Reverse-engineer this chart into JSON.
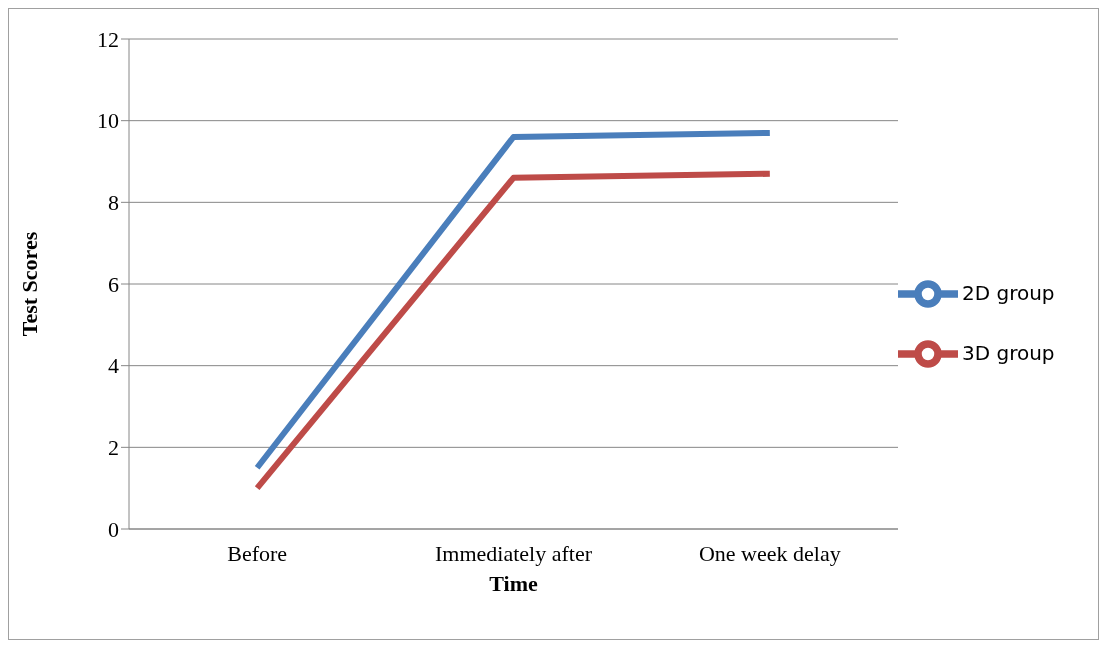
{
  "chart_data": {
    "type": "line",
    "xlabel": "Time",
    "ylabel": "Test Scores",
    "categories": [
      "Before",
      "Immediately after",
      "One week delay"
    ],
    "series": [
      {
        "name": "2D group",
        "color": "#4a7ebb",
        "values": [
          1.5,
          9.6,
          9.7
        ]
      },
      {
        "name": "3D group",
        "color": "#be4b48",
        "values": [
          1.0,
          8.6,
          8.7
        ]
      }
    ],
    "ylim": [
      0,
      12
    ],
    "yticks": [
      0,
      2,
      4,
      6,
      8,
      10,
      12
    ],
    "grid": "y",
    "legend": "right",
    "marker": "none",
    "line_style": "solid"
  }
}
